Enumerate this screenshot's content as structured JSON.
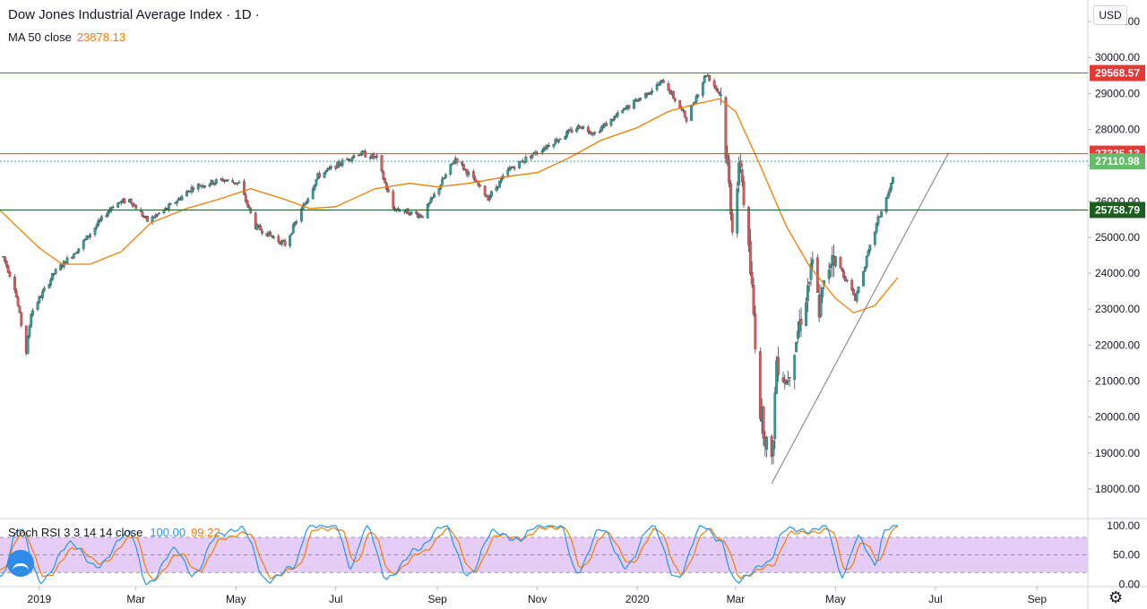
{
  "legend": {
    "title": "Dow Jones Industrial Average Index · 1D ·",
    "ma_label": "MA 50 close",
    "ma_value": "23878.13",
    "rsi_label": "Stoch RSI 3 3 14 14 close",
    "rsi_k": "100.00",
    "rsi_d": "99.22"
  },
  "currency": "USD",
  "colors": {
    "up": "#26a69a",
    "down": "#ef5350",
    "ma": "#f57c00",
    "resistance": "#ef5350",
    "support": "#1b5e20",
    "last_price": "#26a69a",
    "rsi_k": "#2196f3",
    "rsi_d": "#f57c00",
    "rsi_band": "#e1c4f7"
  },
  "icons": {
    "settings": "gear-icon",
    "logo": "tradingview-logo-icon"
  },
  "chart_data": [
    {
      "type": "candlestick",
      "title": "Dow Jones Industrial Average Index",
      "interval": "1D",
      "price_axis": {
        "ticks": [
          "31000.00",
          "30000.00",
          "29000.00",
          "28000.00",
          "27000.00",
          "26000.00",
          "25000.00",
          "24000.00",
          "23000.00",
          "22000.00",
          "21000.00",
          "20000.00",
          "19000.00",
          "18000.00"
        ],
        "range": [
          17200,
          31600
        ]
      },
      "time_axis": {
        "labels": [
          "2019",
          "Mar",
          "May",
          "Jul",
          "Sep",
          "Nov",
          "2020",
          "Mar",
          "May",
          "Jul",
          "Sep"
        ],
        "range": [
          "2018-12-08",
          "2020-10-02"
        ]
      },
      "price_path": [
        [
          "2018-12-08",
          24700
        ],
        [
          "2018-12-17",
          23600
        ],
        [
          "2018-12-24",
          21800
        ],
        [
          "2018-12-27",
          22900
        ],
        [
          "2019-01-10",
          24000
        ],
        [
          "2019-01-25",
          24700
        ],
        [
          "2019-02-15",
          25900
        ],
        [
          "2019-02-25",
          26050
        ],
        [
          "2019-03-08",
          25450
        ],
        [
          "2019-03-20",
          25800
        ],
        [
          "2019-04-05",
          26400
        ],
        [
          "2019-04-23",
          26600
        ],
        [
          "2019-05-03",
          26500
        ],
        [
          "2019-05-13",
          25300
        ],
        [
          "2019-05-31",
          24800
        ],
        [
          "2019-06-20",
          26700
        ],
        [
          "2019-07-15",
          27350
        ],
        [
          "2019-07-26",
          27200
        ],
        [
          "2019-08-05",
          25800
        ],
        [
          "2019-08-23",
          25600
        ],
        [
          "2019-09-12",
          27200
        ],
        [
          "2019-10-02",
          26100
        ],
        [
          "2019-10-15",
          26900
        ],
        [
          "2019-11-05",
          27500
        ],
        [
          "2019-11-27",
          28100
        ],
        [
          "2019-12-06",
          27900
        ],
        [
          "2019-12-27",
          28650
        ],
        [
          "2020-01-17",
          29350
        ],
        [
          "2020-01-31",
          28300
        ],
        [
          "2020-02-12",
          29550
        ],
        [
          "2020-02-21",
          28950
        ],
        [
          "2020-02-28",
          25400
        ],
        [
          "2020-03-04",
          27100
        ],
        [
          "2020-03-11",
          23500
        ],
        [
          "2020-03-16",
          20200
        ],
        [
          "2020-03-23",
          18600
        ],
        [
          "2020-03-26",
          21600
        ],
        [
          "2020-04-01",
          21000
        ],
        [
          "2020-04-17",
          24200
        ],
        [
          "2020-04-21",
          23000
        ],
        [
          "2020-04-29",
          24600
        ],
        [
          "2020-05-13",
          23300
        ],
        [
          "2020-05-27",
          25500
        ],
        [
          "2020-06-03",
          26300
        ],
        [
          "2020-06-08",
          27110.98
        ]
      ],
      "series": [
        {
          "name": "MA 50 close",
          "type": "line",
          "points": [
            [
              "2018-12-08",
              25750
            ],
            [
              "2019-01-01",
              24700
            ],
            [
              "2019-01-15",
              24250
            ],
            [
              "2019-02-01",
              24250
            ],
            [
              "2019-02-20",
              24600
            ],
            [
              "2019-03-10",
              25400
            ],
            [
              "2019-04-01",
              25800
            ],
            [
              "2019-04-20",
              26050
            ],
            [
              "2019-05-10",
              26350
            ],
            [
              "2019-05-31",
              26050
            ],
            [
              "2019-06-15",
              25800
            ],
            [
              "2019-07-01",
              25850
            ],
            [
              "2019-07-25",
              26350
            ],
            [
              "2019-08-15",
              26500
            ],
            [
              "2019-09-01",
              26400
            ],
            [
              "2019-09-20",
              26500
            ],
            [
              "2019-10-15",
              26700
            ],
            [
              "2019-11-01",
              26800
            ],
            [
              "2019-11-20",
              27200
            ],
            [
              "2019-12-10",
              27700
            ],
            [
              "2020-01-01",
              28050
            ],
            [
              "2020-01-20",
              28500
            ],
            [
              "2020-02-05",
              28700
            ],
            [
              "2020-02-20",
              28850
            ],
            [
              "2020-03-01",
              28500
            ],
            [
              "2020-03-15",
              27100
            ],
            [
              "2020-04-01",
              25300
            ],
            [
              "2020-04-15",
              24200
            ],
            [
              "2020-05-01",
              23300
            ],
            [
              "2020-05-12",
              22900
            ],
            [
              "2020-05-25",
              23100
            ],
            [
              "2020-06-08",
              23878.13
            ]
          ]
        },
        {
          "name": "Stoch RSI %K",
          "axis": {
            "ticks": [
              "100.00",
              "50.00",
              "0.00"
            ],
            "range": [
              -4,
              112
            ],
            "band": [
              20,
              80
            ]
          },
          "turning_points": [
            [
              "2018-12-08",
              10
            ],
            [
              "2018-12-20",
              96
            ],
            [
              "2019-01-02",
              5
            ],
            [
              "2019-01-20",
              70
            ],
            [
              "2019-02-05",
              30
            ],
            [
              "2019-02-25",
              90
            ],
            [
              "2019-03-08",
              0
            ],
            [
              "2019-03-25",
              60
            ],
            [
              "2019-04-05",
              15
            ],
            [
              "2019-04-20",
              85
            ],
            [
              "2019-05-05",
              95
            ],
            [
              "2019-05-20",
              5
            ],
            [
              "2019-06-05",
              30
            ],
            [
              "2019-06-15",
              100
            ],
            [
              "2019-07-01",
              100
            ],
            [
              "2019-07-10",
              30
            ],
            [
              "2019-07-20",
              98
            ],
            [
              "2019-08-01",
              10
            ],
            [
              "2019-08-20",
              60
            ],
            [
              "2019-09-05",
              100
            ],
            [
              "2019-09-20",
              15
            ],
            [
              "2019-10-05",
              90
            ],
            [
              "2019-10-20",
              75
            ],
            [
              "2019-11-01",
              100
            ],
            [
              "2019-11-15",
              100
            ],
            [
              "2019-11-25",
              20
            ],
            [
              "2019-12-10",
              95
            ],
            [
              "2019-12-25",
              30
            ],
            [
              "2020-01-10",
              100
            ],
            [
              "2020-01-25",
              10
            ],
            [
              "2020-02-10",
              100
            ],
            [
              "2020-02-20",
              75
            ],
            [
              "2020-03-01",
              5
            ],
            [
              "2020-03-20",
              35
            ],
            [
              "2020-04-01",
              95
            ],
            [
              "2020-04-15",
              90
            ],
            [
              "2020-04-25",
              100
            ],
            [
              "2020-05-05",
              15
            ],
            [
              "2020-05-15",
              80
            ],
            [
              "2020-05-25",
              35
            ],
            [
              "2020-06-01",
              95
            ],
            [
              "2020-06-08",
              100
            ]
          ]
        },
        {
          "name": "Stoch RSI %D",
          "turning_points": [
            [
              "2018-12-08",
              22
            ],
            [
              "2018-12-22",
              88
            ],
            [
              "2019-01-05",
              12
            ],
            [
              "2019-01-23",
              62
            ],
            [
              "2019-02-08",
              36
            ],
            [
              "2019-02-28",
              82
            ],
            [
              "2019-03-11",
              8
            ],
            [
              "2019-03-28",
              52
            ],
            [
              "2019-04-08",
              22
            ],
            [
              "2019-04-23",
              78
            ],
            [
              "2019-05-08",
              88
            ],
            [
              "2019-05-23",
              12
            ],
            [
              "2019-06-08",
              30
            ],
            [
              "2019-06-18",
              94
            ],
            [
              "2019-07-04",
              94
            ],
            [
              "2019-07-13",
              36
            ],
            [
              "2019-07-23",
              90
            ],
            [
              "2019-08-04",
              18
            ],
            [
              "2019-08-23",
              55
            ],
            [
              "2019-09-08",
              94
            ],
            [
              "2019-09-23",
              22
            ],
            [
              "2019-10-08",
              84
            ],
            [
              "2019-10-23",
              78
            ],
            [
              "2019-11-04",
              96
            ],
            [
              "2019-11-18",
              96
            ],
            [
              "2019-11-28",
              28
            ],
            [
              "2019-12-13",
              88
            ],
            [
              "2019-12-28",
              36
            ],
            [
              "2020-01-13",
              94
            ],
            [
              "2020-01-28",
              18
            ],
            [
              "2020-02-13",
              94
            ],
            [
              "2020-02-23",
              72
            ],
            [
              "2020-03-04",
              12
            ],
            [
              "2020-03-23",
              32
            ],
            [
              "2020-04-04",
              88
            ],
            [
              "2020-04-18",
              88
            ],
            [
              "2020-04-28",
              94
            ],
            [
              "2020-05-08",
              22
            ],
            [
              "2020-05-18",
              72
            ],
            [
              "2020-05-28",
              40
            ],
            [
              "2020-06-04",
              88
            ],
            [
              "2020-06-08",
              99.22
            ]
          ]
        }
      ],
      "horizontal_levels": [
        {
          "value": 29568.57,
          "label": "29568.57",
          "role": "resistance"
        },
        {
          "value": 27325.13,
          "label": "27325.13",
          "role": "resistance"
        },
        {
          "value": 25758.79,
          "label": "25758.79",
          "role": "support"
        }
      ],
      "last_price": {
        "value": 27110.98,
        "label": "27110.98"
      },
      "trendline": {
        "from": [
          "2020-03-23",
          18150
        ],
        "to": [
          "2020-07-09",
          27350
        ]
      }
    }
  ]
}
